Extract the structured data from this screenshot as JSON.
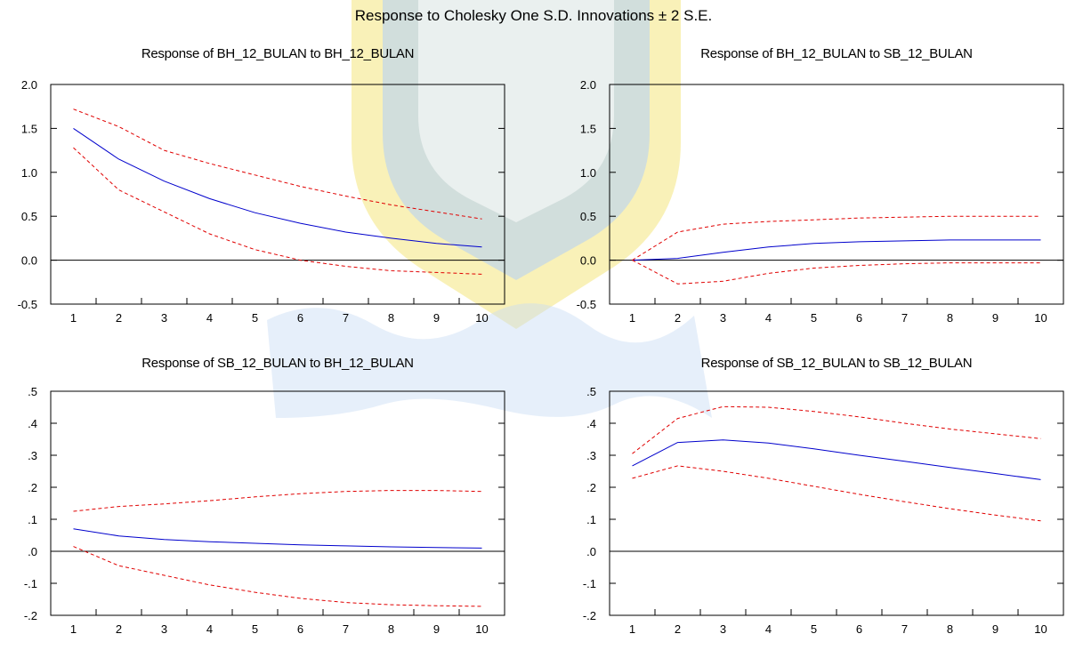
{
  "title": "Response to Cholesky One S.D. Innovations ± 2 S.E.",
  "colors": {
    "response": "#0000cc",
    "band": "#e00000",
    "zero_line": "#000000",
    "watermark_yellow": "#f5e24a",
    "watermark_blue": "#8fb8e8"
  },
  "chart_data": [
    {
      "type": "line",
      "title": "Response of BH_12_BULAN to BH_12_BULAN",
      "x": [
        1,
        2,
        3,
        4,
        5,
        6,
        7,
        8,
        9,
        10
      ],
      "xticks": [
        "1",
        "2",
        "3",
        "4",
        "5",
        "6",
        "7",
        "8",
        "9",
        "10"
      ],
      "yticks": [
        "2.0",
        "1.5",
        "1.0",
        "0.5",
        "0.0",
        "-0.5"
      ],
      "ylim": [
        -0.5,
        2.0
      ],
      "series": [
        {
          "role": "response",
          "values": [
            1.5,
            1.15,
            0.9,
            0.7,
            0.54,
            0.42,
            0.32,
            0.25,
            0.19,
            0.15
          ]
        },
        {
          "role": "upper",
          "values": [
            1.72,
            1.52,
            1.25,
            1.1,
            0.97,
            0.84,
            0.73,
            0.63,
            0.55,
            0.47
          ]
        },
        {
          "role": "lower",
          "values": [
            1.28,
            0.8,
            0.55,
            0.3,
            0.12,
            0.0,
            -0.07,
            -0.12,
            -0.14,
            -0.16
          ]
        }
      ]
    },
    {
      "type": "line",
      "title": "Response of BH_12_BULAN to SB_12_BULAN",
      "x": [
        1,
        2,
        3,
        4,
        5,
        6,
        7,
        8,
        9,
        10
      ],
      "xticks": [
        "1",
        "2",
        "3",
        "4",
        "5",
        "6",
        "7",
        "8",
        "9",
        "10"
      ],
      "yticks": [
        "2.0",
        "1.5",
        "1.0",
        "0.5",
        "0.0",
        "-0.5"
      ],
      "ylim": [
        -0.5,
        2.0
      ],
      "series": [
        {
          "role": "response",
          "values": [
            0.0,
            0.02,
            0.09,
            0.15,
            0.19,
            0.21,
            0.22,
            0.23,
            0.23,
            0.23
          ]
        },
        {
          "role": "upper",
          "values": [
            0.0,
            0.32,
            0.41,
            0.44,
            0.46,
            0.48,
            0.49,
            0.5,
            0.5,
            0.5
          ]
        },
        {
          "role": "lower",
          "values": [
            0.0,
            -0.27,
            -0.24,
            -0.15,
            -0.09,
            -0.06,
            -0.04,
            -0.03,
            -0.03,
            -0.03
          ]
        }
      ]
    },
    {
      "type": "line",
      "title": "Response of SB_12_BULAN to BH_12_BULAN",
      "x": [
        1,
        2,
        3,
        4,
        5,
        6,
        7,
        8,
        9,
        10
      ],
      "xticks": [
        "1",
        "2",
        "3",
        "4",
        "5",
        "6",
        "7",
        "8",
        "9",
        "10"
      ],
      "yticks": [
        ".5",
        ".4",
        ".3",
        ".2",
        ".1",
        ".0",
        "-.1",
        "-.2"
      ],
      "ylim": [
        -0.2,
        0.5
      ],
      "series": [
        {
          "role": "response",
          "values": [
            0.07,
            0.048,
            0.037,
            0.03,
            0.025,
            0.02,
            0.017,
            0.014,
            0.012,
            0.01
          ]
        },
        {
          "role": "upper",
          "values": [
            0.125,
            0.14,
            0.148,
            0.158,
            0.17,
            0.18,
            0.187,
            0.19,
            0.19,
            0.187
          ]
        },
        {
          "role": "lower",
          "values": [
            0.015,
            -0.045,
            -0.075,
            -0.105,
            -0.128,
            -0.147,
            -0.16,
            -0.167,
            -0.17,
            -0.172
          ]
        }
      ]
    },
    {
      "type": "line",
      "title": "Response of SB_12_BULAN to SB_12_BULAN",
      "x": [
        1,
        2,
        3,
        4,
        5,
        6,
        7,
        8,
        9,
        10
      ],
      "xticks": [
        "1",
        "2",
        "3",
        "4",
        "5",
        "6",
        "7",
        "8",
        "9",
        "10"
      ],
      "yticks": [
        ".5",
        ".4",
        ".3",
        ".2",
        ".1",
        ".0",
        "-.1",
        "-.2"
      ],
      "ylim": [
        -0.2,
        0.5
      ],
      "series": [
        {
          "role": "response",
          "values": [
            0.267,
            0.34,
            0.348,
            0.338,
            0.32,
            0.3,
            0.281,
            0.262,
            0.243,
            0.224
          ]
        },
        {
          "role": "upper",
          "values": [
            0.305,
            0.415,
            0.452,
            0.45,
            0.437,
            0.42,
            0.4,
            0.382,
            0.367,
            0.352
          ]
        },
        {
          "role": "lower",
          "values": [
            0.228,
            0.267,
            0.25,
            0.228,
            0.203,
            0.178,
            0.155,
            0.133,
            0.113,
            0.095
          ]
        }
      ]
    }
  ]
}
